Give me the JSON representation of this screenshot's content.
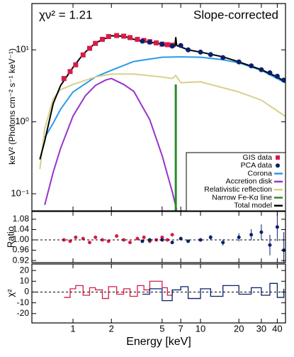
{
  "chart_data": [
    {
      "type": "line",
      "ylabel": "keV² (Photons cm⁻² s⁻¹ keV⁻¹)",
      "annotations": [
        "χν² = 1.21",
        "Slope-corrected"
      ],
      "xlog": true,
      "ylog": true,
      "xlim": [
        0.476,
        46.4
      ],
      "ylim": [
        0.058,
        44
      ],
      "yticks": [
        {
          "value": 0.1,
          "label": "10⁻¹"
        },
        {
          "value": 1,
          "label": "10⁰"
        },
        {
          "value": 10,
          "label": "10¹"
        }
      ],
      "legend": "lower right",
      "series": [
        {
          "name": "GIS data",
          "color": "#d81b46",
          "style": "squares",
          "x": [
            0.85,
            0.95,
            1.05,
            1.2,
            1.35,
            1.5,
            1.7,
            1.9,
            2.2,
            2.5,
            2.8,
            3.2,
            3.6,
            4.0,
            4.5,
            5.0,
            5.5,
            6.0
          ],
          "values": [
            4.0,
            5.0,
            6.2,
            8.5,
            10.5,
            12.3,
            14,
            15.3,
            15.8,
            15.5,
            14.8,
            14,
            13.5,
            13,
            12.5,
            12,
            11.8,
            11.6
          ]
        },
        {
          "name": "PCA data",
          "color": "#0a1f6e",
          "style": "circles",
          "x": [
            3.5,
            4,
            5,
            6,
            7,
            8,
            10,
            12,
            15,
            20,
            25,
            30,
            35,
            40,
            45
          ],
          "values": [
            13.2,
            12.8,
            12,
            11.3,
            11.5,
            10,
            9.3,
            8.6,
            7.8,
            6.8,
            6,
            5.3,
            4.8,
            4.3,
            3.8
          ]
        },
        {
          "name": "Corona",
          "color": "#2a9be8",
          "style": "line",
          "x": [
            0.6,
            0.7,
            0.8,
            1,
            1.5,
            2,
            3,
            5,
            7,
            10,
            15,
            20,
            30,
            46
          ],
          "values": [
            0.6,
            0.96,
            1.5,
            2.6,
            4.2,
            5.2,
            6.9,
            7.9,
            8,
            7.9,
            7.3,
            6.6,
            5.2,
            3.5
          ]
        },
        {
          "name": "Accretion disk",
          "color": "#9932cc",
          "style": "line",
          "x": [
            0.6,
            0.7,
            0.8,
            1,
            1.25,
            1.5,
            1.8,
            2,
            2.5,
            3,
            4,
            5,
            6,
            6.5
          ],
          "values": [
            0.07,
            0.2,
            0.43,
            1.2,
            2.3,
            3.2,
            3.8,
            4.0,
            3.3,
            2.65,
            1.07,
            0.34,
            0.107,
            0.06
          ]
        },
        {
          "name": "Relativistic reflection",
          "color": "#d9cf8a",
          "style": "line",
          "x": [
            0.55,
            0.6,
            0.7,
            0.8,
            1,
            1.5,
            2,
            3,
            5,
            6,
            6.4,
            7,
            10,
            20,
            30,
            46
          ],
          "values": [
            0.22,
            0.8,
            2.1,
            2.8,
            3.3,
            4.2,
            4.6,
            4.6,
            4.2,
            4.0,
            4.4,
            3.5,
            3.6,
            2.6,
            2.0,
            1.2
          ]
        },
        {
          "name": "Narrow Fe-Kα line",
          "color": "#2a8a2a",
          "style": "spike",
          "x": [
            6.4
          ],
          "values": [
            3.3
          ]
        },
        {
          "name": "Total model",
          "color": "#000000",
          "style": "line",
          "x": [
            0.55,
            0.6,
            0.7,
            0.8,
            1,
            1.2,
            1.5,
            2,
            2.5,
            3,
            4,
            5,
            6,
            6.3,
            6.4,
            6.5,
            7,
            8,
            10,
            15,
            20,
            30,
            40,
            46
          ],
          "values": [
            0.3,
            0.54,
            1.8,
            3.2,
            5.7,
            8.7,
            12.5,
            15.7,
            15.5,
            14,
            12.8,
            12,
            11.5,
            11.3,
            15,
            11.5,
            11,
            10,
            9.3,
            8,
            6.8,
            5.3,
            4.2,
            3.6
          ]
        }
      ]
    },
    {
      "type": "scatter",
      "ylabel": "Ratio",
      "xlog": true,
      "xlim": [
        0.476,
        46.4
      ],
      "ylim": [
        0.912,
        1.11
      ],
      "hline": 1,
      "yticks": [
        0.92,
        0.96,
        {
          "value": 1,
          "label": "1.00"
        },
        1.04,
        1.08
      ],
      "series": [
        {
          "name": "GIS data",
          "color": "#d81b46",
          "x": [
            0.85,
            0.95,
            1.05,
            1.2,
            1.35,
            1.5,
            1.7,
            1.9,
            2.2,
            2.5,
            2.8,
            3.2,
            3.6,
            4.0,
            4.5,
            5.0,
            5.5,
            6.0
          ],
          "values": [
            1.0,
            0.995,
            1.01,
            1.005,
            0.99,
            1.01,
            1.0,
            0.995,
            1.015,
            1.0,
            0.99,
            1.005,
            1.01,
            0.995,
            1.0,
            1.01,
            1.0,
            1.02
          ]
        },
        {
          "name": "PCA data",
          "color": "#0a1f6e",
          "x": [
            3.5,
            4,
            5,
            6,
            7,
            8,
            10,
            12,
            15,
            20,
            25,
            30,
            35,
            40,
            45
          ],
          "values": [
            0.995,
            1.0,
            1.0,
            0.99,
            1.005,
            0.995,
            1.0,
            1.01,
            0.99,
            1.01,
            1.02,
            1.03,
            0.98,
            1.05,
            0.96
          ],
          "errors": [
            0.003,
            0.003,
            0.004,
            0.004,
            0.005,
            0.006,
            0.007,
            0.009,
            0.012,
            0.016,
            0.022,
            0.03,
            0.04,
            0.055,
            0.07
          ]
        }
      ]
    },
    {
      "type": "step",
      "ylabel": "χ²",
      "xlabel": "Energy [keV]",
      "xlog": true,
      "xlim": [
        0.476,
        46.4
      ],
      "ylim": [
        -28.7,
        26
      ],
      "hline": 0,
      "xticks": [
        1,
        2,
        5,
        7,
        10,
        20,
        30,
        40
      ],
      "yticks": [
        -20,
        -10,
        0,
        10,
        20
      ],
      "series": [
        {
          "name": "GIS data",
          "color": "#d81b46",
          "x": [
            0.85,
            0.95,
            1.05,
            1.2,
            1.35,
            1.5,
            1.7,
            1.9,
            2.2,
            2.5,
            2.8,
            3.2,
            3.6,
            4.0,
            4.5,
            5.0,
            5.5,
            6.0
          ],
          "values": [
            -5,
            3,
            6,
            -3,
            4,
            2,
            -6,
            5,
            -2,
            3,
            -4,
            6,
            2,
            10,
            10,
            4,
            -3,
            2
          ]
        },
        {
          "name": "PCA data",
          "color": "#0a1f6e",
          "x": [
            3.5,
            4,
            5,
            6,
            7,
            8,
            10,
            12,
            15,
            20,
            25,
            30,
            35,
            40,
            45
          ],
          "values": [
            -2,
            3,
            -8,
            2,
            5,
            -6,
            3,
            -4,
            6,
            -2,
            4,
            -3,
            8,
            -5,
            3
          ]
        }
      ]
    }
  ]
}
